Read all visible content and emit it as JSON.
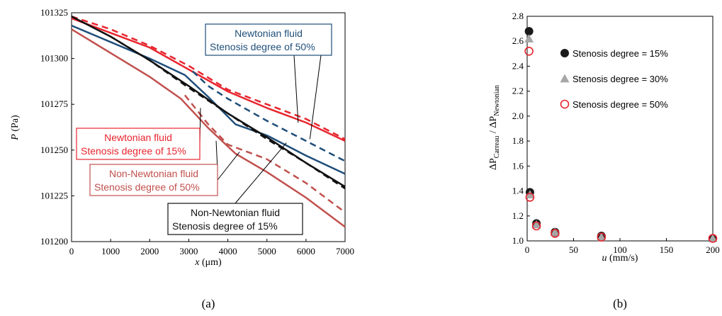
{
  "chart_data": [
    {
      "type": "line",
      "panel_label": "(a)",
      "xlabel_var": "x",
      "xlabel_unit": " (μm)",
      "ylabel_var": "P",
      "ylabel_unit": " (Pa)",
      "xlim": [
        0,
        7000
      ],
      "ylim": [
        101200,
        101325
      ],
      "x_ticks": [
        "0",
        "1000",
        "2000",
        "3000",
        "4000",
        "5000",
        "6000",
        "7000"
      ],
      "y_ticks": [
        "101200",
        "101225",
        "101250",
        "101275",
        "101300",
        "101325"
      ],
      "series": [
        {
          "key": "red_dashed",
          "color": "#e8252e",
          "dash": true,
          "points": [
            [
              0,
              101323
            ],
            [
              1000,
              101316
            ],
            [
              2000,
              101307
            ],
            [
              3000,
              101296
            ],
            [
              4000,
              101283
            ],
            [
              5000,
              101275
            ],
            [
              6000,
              101267
            ],
            [
              7000,
              101256
            ]
          ]
        },
        {
          "key": "red_solid",
          "color": "#e8252e",
          "dash": false,
          "points": [
            [
              0,
              101322
            ],
            [
              1000,
              101314
            ],
            [
              2000,
              101306
            ],
            [
              3000,
              101294
            ],
            [
              4000,
              101282
            ],
            [
              5000,
              101273
            ],
            [
              6000,
              101265
            ],
            [
              7000,
              101255
            ]
          ]
        },
        {
          "key": "blue_solid",
          "color": "#1f4e79",
          "dash": false,
          "points": [
            [
              0,
              101318
            ],
            [
              1000,
              101309
            ],
            [
              2000,
              101300
            ],
            [
              2900,
              101291
            ],
            [
              3500,
              101279
            ],
            [
              4200,
              101264
            ],
            [
              5000,
              101258
            ],
            [
              6000,
              101247
            ],
            [
              7000,
              101237
            ]
          ]
        },
        {
          "key": "blue_dashed",
          "color": "#1f4e79",
          "dash": true,
          "points": [
            [
              3100,
              101293
            ],
            [
              3500,
              101285
            ],
            [
              4000,
              101278
            ],
            [
              5000,
              101266
            ],
            [
              6000,
              101255
            ],
            [
              7000,
              101244
            ]
          ]
        },
        {
          "key": "black_solid",
          "color": "#111111",
          "dash": false,
          "points": [
            [
              0,
              101323
            ],
            [
              1000,
              101312
            ],
            [
              2000,
              101299
            ],
            [
              3000,
              101285
            ],
            [
              4000,
              101270
            ],
            [
              5000,
              101257
            ],
            [
              6000,
              101243
            ],
            [
              7000,
              101230
            ]
          ]
        },
        {
          "key": "black_dashed",
          "color": "#111111",
          "dash": true,
          "points": [
            [
              0,
              101323
            ],
            [
              1000,
              101312
            ],
            [
              2000,
              101299
            ],
            [
              3000,
              101284
            ],
            [
              4000,
              101270
            ],
            [
              5000,
              101256
            ],
            [
              6000,
              101243
            ],
            [
              7000,
              101229
            ]
          ]
        },
        {
          "key": "brown_solid",
          "color": "#c0504d",
          "dash": false,
          "points": [
            [
              0,
              101316
            ],
            [
              1000,
              101303
            ],
            [
              2000,
              101290
            ],
            [
              2800,
              101278
            ],
            [
              3500,
              101262
            ],
            [
              4200,
              101248
            ],
            [
              5000,
              101238
            ],
            [
              6000,
              101224
            ],
            [
              7000,
              101208
            ]
          ]
        },
        {
          "key": "brown_dashed",
          "color": "#c0504d",
          "dash": true,
          "points": [
            [
              2900,
              101280
            ],
            [
              3500,
              101264
            ],
            [
              4000,
              101253
            ],
            [
              5000,
              101245
            ],
            [
              6000,
              101232
            ],
            [
              7000,
              101216
            ]
          ]
        }
      ],
      "annotations": [
        {
          "key": "ann_newt50",
          "lines": [
            "Newtonian fluid",
            "Stenosis degree of 50%"
          ],
          "color": "#1f4e79",
          "target": [
            5800,
            101265
          ]
        },
        {
          "key": "ann_newt15",
          "lines": [
            "Newtonian fluid",
            "Stenosis degree of 15%"
          ],
          "color": "#e8252e",
          "target": [
            3300,
            101273
          ]
        },
        {
          "key": "ann_nonnewt50",
          "lines": [
            "Non-Newtonian fluid",
            "Stenosis degree of  50%"
          ],
          "color": "#c0504d",
          "target": [
            4300,
            101249
          ]
        },
        {
          "key": "ann_nonnewt15",
          "lines": [
            "Non-Newtonian fluid",
            "Stenosis degree of 15%"
          ],
          "color": "#111111",
          "target": [
            5500,
            101254
          ]
        }
      ]
    },
    {
      "type": "scatter",
      "panel_label": "(b)",
      "xlabel": "u (mm/s)",
      "ylabel_parts": [
        "ΔP",
        "Carreau",
        " / ΔP",
        "Newtonian"
      ],
      "xlim": [
        0,
        200
      ],
      "ylim": [
        1.0,
        2.8
      ],
      "x_ticks": [
        "0",
        "50",
        "100",
        "150",
        "200"
      ],
      "y_ticks": [
        "1.0",
        "1.2",
        "1.4",
        "1.6",
        "1.8",
        "2.0",
        "2.2",
        "2.4",
        "2.6",
        "2.8"
      ],
      "series": [
        {
          "name": "Stenosis degree = 15%",
          "marker": "circle-filled",
          "color": "#1a1a1a",
          "points": [
            [
              2,
              2.68
            ],
            [
              3,
              1.39
            ],
            [
              10,
              1.14
            ],
            [
              30,
              1.07
            ],
            [
              80,
              1.04
            ],
            [
              200,
              1.02
            ]
          ]
        },
        {
          "name": "Stenosis degree = 30%",
          "marker": "triangle",
          "color": "#a6a6a6",
          "points": [
            [
              2,
              2.62
            ],
            [
              3,
              1.37
            ],
            [
              10,
              1.13
            ],
            [
              30,
              1.07
            ],
            [
              80,
              1.03
            ],
            [
              200,
              1.02
            ]
          ]
        },
        {
          "name": "Stenosis degree = 50%",
          "marker": "circle-open",
          "color": "#e8252e",
          "points": [
            [
              2,
              2.52
            ],
            [
              3,
              1.35
            ],
            [
              10,
              1.12
            ],
            [
              30,
              1.06
            ],
            [
              80,
              1.03
            ],
            [
              200,
              1.02
            ]
          ]
        }
      ]
    }
  ]
}
